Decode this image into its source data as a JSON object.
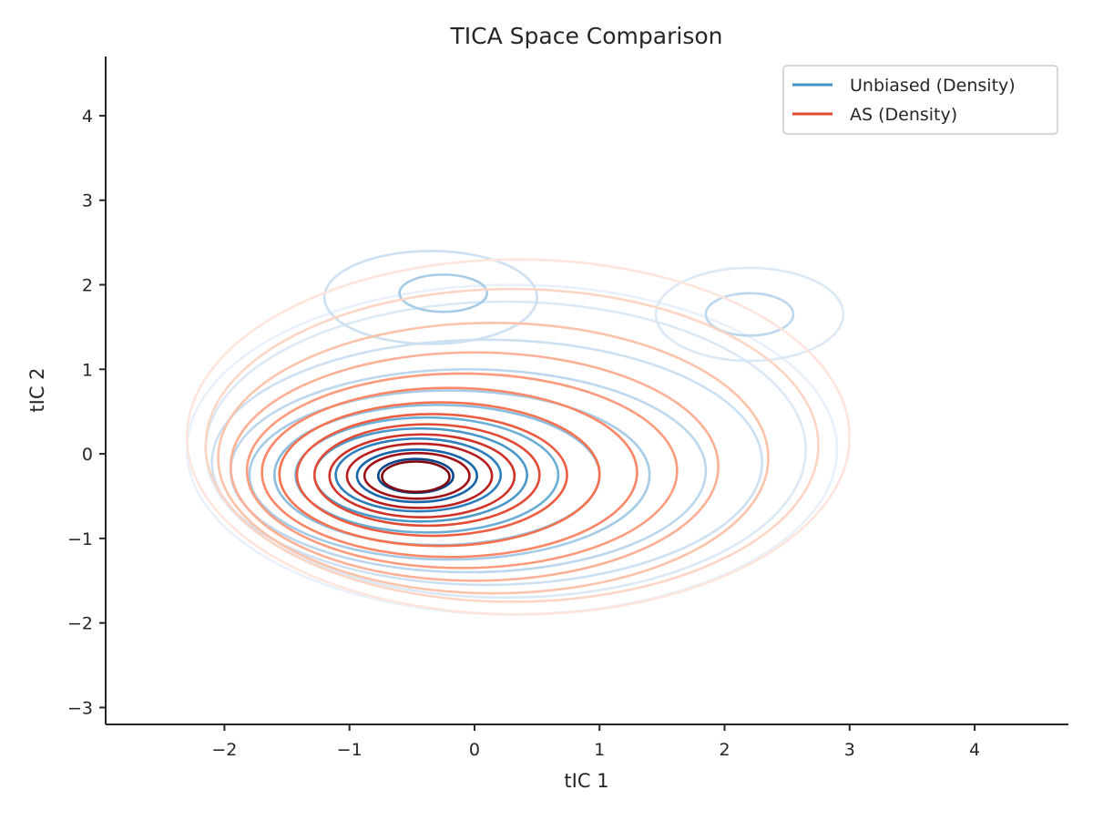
{
  "chart_data": {
    "type": "contour",
    "title": "TICA Space Comparison",
    "xlabel": "tIC 1",
    "ylabel": "tIC 2",
    "xlim": [
      -2.95,
      4.75
    ],
    "ylim": [
      -3.2,
      4.7
    ],
    "xticks": [
      -2,
      -1,
      0,
      1,
      2,
      3,
      4
    ],
    "yticks": [
      -3,
      -2,
      -1,
      0,
      1,
      2,
      3,
      4
    ],
    "legend": {
      "position": "top-right"
    },
    "series": [
      {
        "name": "Unbiased (Density)",
        "legend_color": "#4292c6",
        "levels": [
          {
            "color": "#e8f1fb",
            "components": [
              {
                "cx": 0.3,
                "cy": 0.05,
                "rx": 2.6,
                "ry": 1.95
              }
            ]
          },
          {
            "color": "#dbe9f6",
            "components": [
              {
                "cx": 0.25,
                "cy": 0.05,
                "rx": 2.4,
                "ry": 1.75
              },
              {
                "cx": 2.2,
                "cy": 1.65,
                "rx": 0.75,
                "ry": 0.55
              }
            ]
          },
          {
            "color": "#cde0f2",
            "components": [
              {
                "cx": 0.1,
                "cy": -0.1,
                "rx": 2.2,
                "ry": 1.45
              },
              {
                "cx": -0.35,
                "cy": 1.85,
                "rx": 0.85,
                "ry": 0.55
              }
            ]
          },
          {
            "color": "#bcd7ee",
            "components": [
              {
                "cx": -0.05,
                "cy": -0.2,
                "rx": 1.9,
                "ry": 1.2
              },
              {
                "cx": 2.2,
                "cy": 1.65,
                "rx": 0.35,
                "ry": 0.25
              }
            ]
          },
          {
            "color": "#a6cbe6",
            "components": [
              {
                "cx": -0.2,
                "cy": -0.25,
                "rx": 1.6,
                "ry": 1.0
              },
              {
                "cx": -0.25,
                "cy": 1.9,
                "rx": 0.35,
                "ry": 0.22
              }
            ]
          },
          {
            "color": "#8cbcdd",
            "components": [
              {
                "cx": -0.3,
                "cy": -0.25,
                "rx": 1.3,
                "ry": 0.83
              }
            ]
          },
          {
            "color": "#6aaed6",
            "components": [
              {
                "cx": -0.38,
                "cy": -0.25,
                "rx": 1.05,
                "ry": 0.68
              }
            ]
          },
          {
            "color": "#4a98c9",
            "components": [
              {
                "cx": -0.43,
                "cy": -0.25,
                "rx": 0.85,
                "ry": 0.55
              }
            ]
          },
          {
            "color": "#2e7ebc",
            "components": [
              {
                "cx": -0.45,
                "cy": -0.25,
                "rx": 0.66,
                "ry": 0.43
              }
            ]
          },
          {
            "color": "#1764ab",
            "components": [
              {
                "cx": -0.46,
                "cy": -0.26,
                "rx": 0.48,
                "ry": 0.31
              }
            ]
          },
          {
            "color": "#08468b",
            "components": [
              {
                "cx": -0.47,
                "cy": -0.26,
                "rx": 0.3,
                "ry": 0.2
              }
            ]
          }
        ]
      },
      {
        "name": "AS (Density)",
        "legend_color": "#e34a33",
        "levels": [
          {
            "color": "#fee5dc",
            "components": [
              {
                "cx": 0.35,
                "cy": 0.2,
                "rx": 2.65,
                "ry": 2.1
              }
            ]
          },
          {
            "color": "#fdd5c4",
            "components": [
              {
                "cx": 0.3,
                "cy": 0.1,
                "rx": 2.45,
                "ry": 1.85
              }
            ]
          },
          {
            "color": "#fcc3ab",
            "components": [
              {
                "cx": 0.15,
                "cy": -0.05,
                "rx": 2.2,
                "ry": 1.6
              }
            ]
          },
          {
            "color": "#fcb095",
            "components": [
              {
                "cx": 0.0,
                "cy": -0.15,
                "rx": 1.95,
                "ry": 1.35
              }
            ]
          },
          {
            "color": "#fc9c7d",
            "components": [
              {
                "cx": -0.1,
                "cy": -0.2,
                "rx": 1.72,
                "ry": 1.15
              }
            ]
          },
          {
            "color": "#fb8767",
            "components": [
              {
                "cx": -0.2,
                "cy": -0.22,
                "rx": 1.5,
                "ry": 1.0
              }
            ]
          },
          {
            "color": "#f6724f",
            "components": [
              {
                "cx": -0.28,
                "cy": -0.24,
                "rx": 1.28,
                "ry": 0.85
              }
            ]
          },
          {
            "color": "#ee5c41",
            "components": [
              {
                "cx": -0.34,
                "cy": -0.25,
                "rx": 1.08,
                "ry": 0.72
              }
            ]
          },
          {
            "color": "#e34a33",
            "components": [
              {
                "cx": -0.38,
                "cy": -0.25,
                "rx": 0.9,
                "ry": 0.6
              }
            ]
          },
          {
            "color": "#d03227",
            "components": [
              {
                "cx": -0.42,
                "cy": -0.26,
                "rx": 0.74,
                "ry": 0.49
              }
            ]
          },
          {
            "color": "#b91e1e",
            "components": [
              {
                "cx": -0.44,
                "cy": -0.26,
                "rx": 0.58,
                "ry": 0.38
              }
            ]
          },
          {
            "color": "#9f1017",
            "components": [
              {
                "cx": -0.46,
                "cy": -0.26,
                "rx": 0.42,
                "ry": 0.27
              }
            ]
          },
          {
            "color": "#7f0610",
            "components": [
              {
                "cx": -0.47,
                "cy": -0.27,
                "rx": 0.27,
                "ry": 0.18
              }
            ]
          }
        ]
      }
    ]
  }
}
